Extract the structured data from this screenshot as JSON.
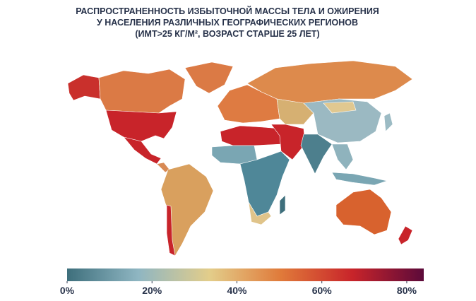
{
  "chart_data": {
    "type": "choropleth",
    "title": [
      "РАСПРОСТРАНЕННОСТЬ ИЗБЫТОЧНОЙ МАССЫ ТЕЛА И ОЖИРЕНИЯ",
      "У НАСЕЛЕНИЯ РАЗЛИЧНЫХ ГЕОГРАФИЧЕСКИХ РЕГИОНОВ",
      "(ИМТ>25 КГ/М², ВОЗРАСТ СТАРШЕ 25 ЛЕТ)"
    ],
    "colorscale": [
      "#3e6f7c",
      "#8fb6c2",
      "#e3cd8a",
      "#e07a3a",
      "#c8242a",
      "#5c0a3a"
    ],
    "clim": [
      0,
      84
    ],
    "ticks": [
      {
        "value": 0,
        "label": "0%"
      },
      {
        "value": 20,
        "label": "20%"
      },
      {
        "value": 40,
        "label": "40%"
      },
      {
        "value": 60,
        "label": "60%"
      },
      {
        "value": 80,
        "label": "80%"
      }
    ]
  }
}
